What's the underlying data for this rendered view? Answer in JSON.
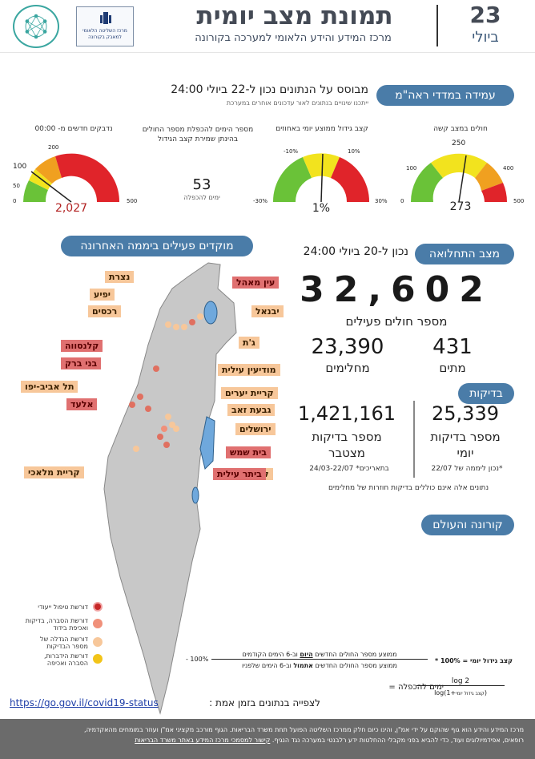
{
  "header": {
    "title": "תמונת מצב יומית",
    "subtitle": "מרכז המידע והידע הלאומי למערכה בקורונה",
    "day": "23",
    "month": "ביולי",
    "logo_box_text": "מרכז השליטה הלאומי למאבק בקורונה"
  },
  "ramam": {
    "pill": "עמידה במדדי ראה\"מ",
    "based_on": "מבוסס על הנתונים נכון ל-22 ביולי 24:00",
    "note": "ייתכנו שינויים בנתונים לאור עדכונים אוחרים במערכת",
    "gauges": [
      {
        "label": "חולים במצב קשה",
        "value": "273",
        "ticks": [
          "0",
          "100",
          "250",
          "400",
          "500"
        ]
      },
      {
        "label": "קצב גידול ממוצע יומי באחוזים",
        "value": "1%",
        "ticks": [
          "-30%",
          "-10%",
          "10%",
          "30%"
        ]
      },
      {
        "label": "מספר הימים להכפלת מספר החולים בהינתן שמירת קצב הגידול",
        "value": "53",
        "sub": "ימים להכפלה"
      },
      {
        "label": "נדבקים חדשים מ- 00:00",
        "value": "2,027",
        "ticks": [
          "0",
          "50",
          "100",
          "200",
          "500"
        ]
      }
    ]
  },
  "foci": {
    "pill": "מוקדים פעילים ביממה האחרונה",
    "cities_red": [
      "עין מאהל",
      "קלנסווה",
      "בני ברק",
      "אלעד",
      "בית שמש",
      "ביתר עילית"
    ],
    "cities_orange": [
      "נצרת",
      "יפיע",
      "רכסים",
      "יבנאל",
      "ג'ת",
      "מודיעין עילית",
      "תל אביב-יפו",
      "קריית יערים",
      "גבעת זאב",
      "ירושלים",
      "קריית מלאכי"
    ],
    "legend": [
      {
        "text": "דורשת טיפול ייעודי",
        "color": "#c62828"
      },
      {
        "text": "דורשת הסברה, בדיקות ואכיפת בידוד",
        "color": "#f0907a"
      },
      {
        "text": "דורשת הגדלה של מספר הבדיקות",
        "color": "#f7c79a"
      },
      {
        "text": "דורשת הידברות, הסברה ואכיפה",
        "color": "#f2c418"
      }
    ]
  },
  "morbidity": {
    "pill": "מצב התחלואה",
    "as_of": "נכון ל-20 ביולי 24:00",
    "active": "32,602",
    "active_label": "מספר חולים פעילים",
    "recovered": "23,390",
    "recovered_label": "מחלימים",
    "deaths": "431",
    "deaths_label": "מתים"
  },
  "tests": {
    "pill": "בדיקות",
    "cumulative": "1,421,161",
    "cumulative_label_1": "מספר בדיקות",
    "cumulative_label_2": "מצטבר",
    "daily": "25,339",
    "daily_label_1": "מספר בדיקות",
    "daily_label_2": "יומי",
    "cumulative_note": "24/03-22/07 *בתאריכים",
    "daily_note": "*נכון ליממה של 22/07",
    "footnote": "נתונים אלה אינם כוללים בדיקות חוזרות של מחלימים"
  },
  "world": {
    "pill": "קורונה והעולם"
  },
  "formula": {
    "line1_a": "ממוצע מספר החולים החדשים ",
    "line1_b": "היום",
    "line1_c": " וב-6 הימים הקודמים",
    "line2_a": "ממוצע מספר החולים החדשים ",
    "line2_b": "אתמול",
    "line2_c": " וב-6 הימים שלפניו",
    "lhs1": "קצב גידול יומי",
    "eq1": "= 100% *",
    "minus": "- 100%",
    "lhs2": "ימים להכפלה",
    "num": "log 2",
    "den": "log(1+",
    "den_small": "קצב גידול יומי",
    "den_end": ")"
  },
  "link": {
    "label": "לצפייה בנתונים בזמן אמת :",
    "url": "https://go.gov.il/covid19-status"
  },
  "footer": {
    "line1": "מרכז המידע והידע הוא גוף שהוקם על ידי אמ\"ן, והינו כיום חלק ממרכז השליטה הפועל תחת משרד הבריאות. הגוף מורכב מקציני אמ\"ן ועוזר במומחים מהאקדמיה,",
    "line2": "רופאים, אפידמיולוגים ועוד, כדי להביא בפני מקבלי ההחלטות ידע רלבנטי במערכה נגד הנגיף.",
    "link": "קישור למסמכי מרכז המידע באתר משרד הבריאות"
  }
}
